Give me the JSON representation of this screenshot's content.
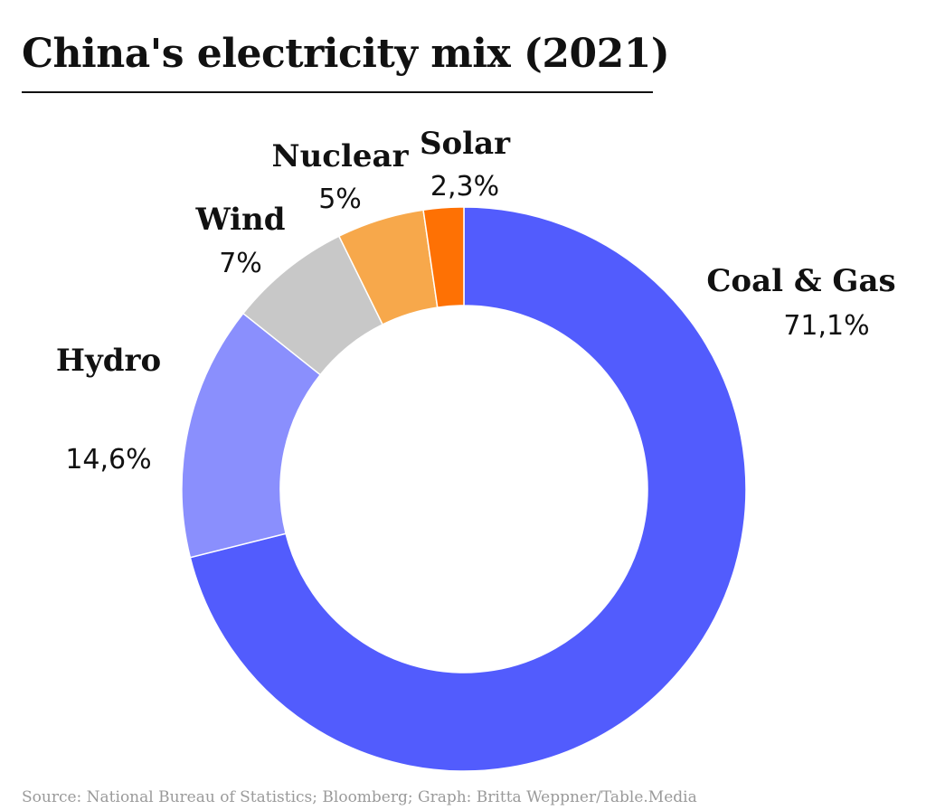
{
  "chart_data": {
    "type": "pie",
    "variant": "donut",
    "title": "China's electricity mix (2021)",
    "unit": "%",
    "slices": [
      {
        "name": "Coal & Gas",
        "value": 71.1,
        "label": "71,1%",
        "color": "#525cfd"
      },
      {
        "name": "Hydro",
        "value": 14.6,
        "label": "14,6%",
        "color": "#8a8ffd"
      },
      {
        "name": "Wind",
        "value": 7,
        "label": "7%",
        "color": "#c8c8c8"
      },
      {
        "name": "Nuclear",
        "value": 5,
        "label": "5%",
        "color": "#f7a84b"
      },
      {
        "name": "Solar",
        "value": 2.3,
        "label": "2,3%",
        "color": "#fe7104"
      }
    ],
    "order": "clockwise from top, largest first",
    "legend": "none (direct labels)"
  },
  "source": "Source: National Bureau of Statistics; Bloomberg;  Graph: Britta Weppner/Table.Media"
}
